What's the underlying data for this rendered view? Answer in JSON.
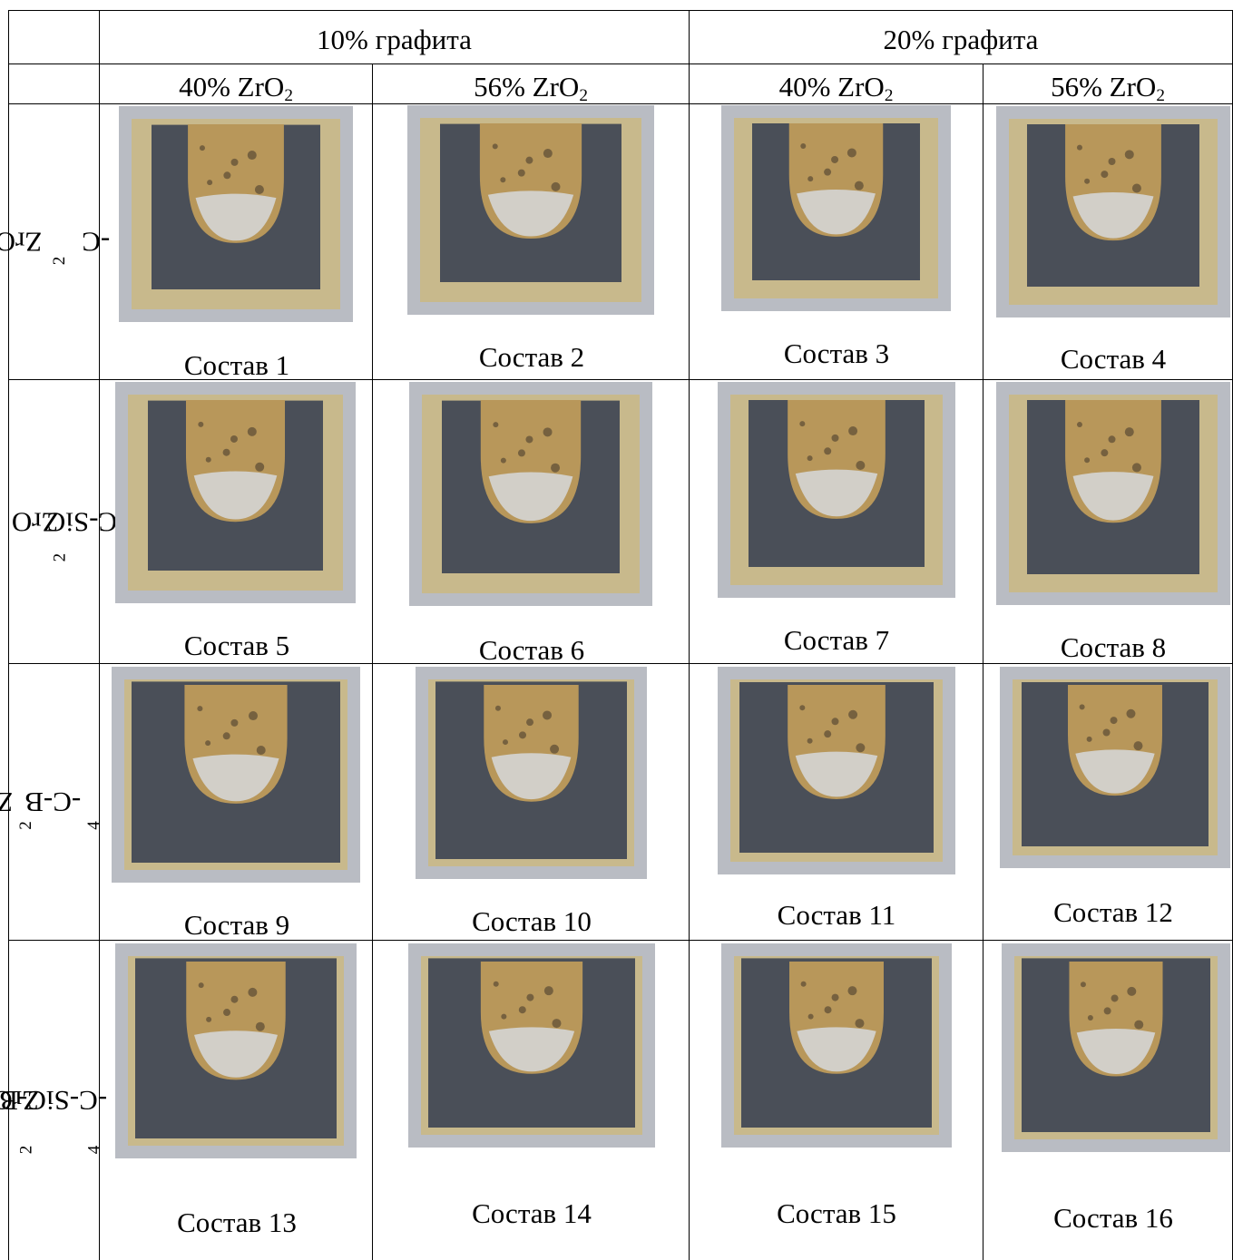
{
  "header": {
    "col_group_1": "10% графита",
    "col_group_2": "20% графита",
    "sub_1": "40% ZrO",
    "sub_2": "56% ZrO",
    "sub_3": "40% ZrO",
    "sub_4": "56% ZrO",
    "sub_index": "2"
  },
  "rows": [
    {
      "label_parts": [
        "ZrO",
        "2",
        "-C"
      ]
    },
    {
      "label_parts": [
        "ZrO",
        "2",
        "-C-SiC"
      ]
    },
    {
      "label_parts": [
        "ZrO",
        "2",
        "-C-B",
        "4",
        "C"
      ]
    },
    {
      "label_parts": [
        "ZrO",
        "2",
        "-C-SiC-B",
        "4",
        "C"
      ]
    }
  ],
  "captions": [
    "Состав 1",
    "Состав 2",
    "Состав 3",
    "Состав 4",
    "Состав 5",
    "Состав 6",
    "Состав 7",
    "Состав 8",
    "Состав 9",
    "Состав 10",
    "Состав 11",
    "Состав 12",
    "Состав 13",
    "Состав 14",
    "Состав 15",
    "Состав 16"
  ],
  "colors": {
    "refractory": "#c8b98c",
    "slag": "#b8975a",
    "glass": "#d6d8dc",
    "infiltrated": "#4a4f58",
    "backdrop": "#b9bcc3"
  }
}
